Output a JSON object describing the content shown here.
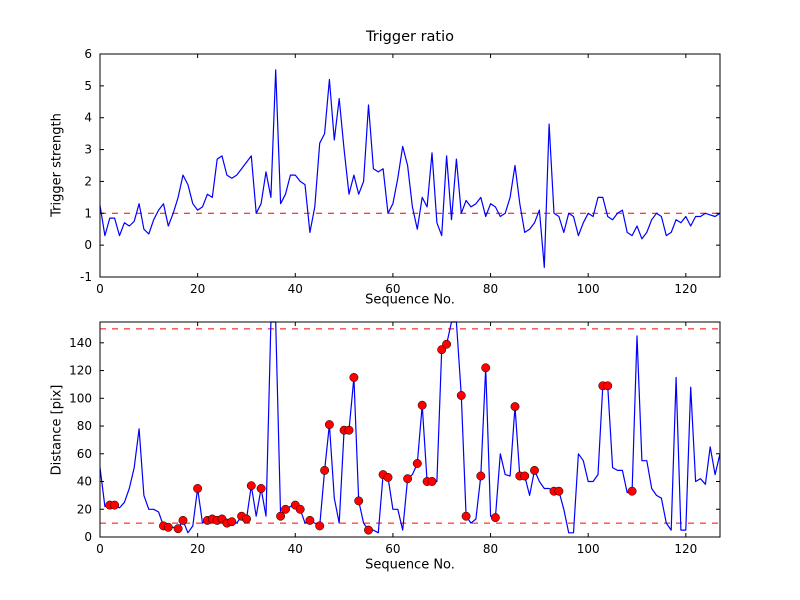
{
  "figure": {
    "background": "#ffffff",
    "line_color": "#0000ff",
    "threshold_color": "#ff0000",
    "marker_color": "#ff0000"
  },
  "chart_data": [
    {
      "type": "line",
      "title": "Trigger ratio",
      "xlabel": "Sequence No.",
      "ylabel": "Trigger strength",
      "xlim": [
        0,
        127
      ],
      "ylim": [
        -1,
        6
      ],
      "xticks": [
        0,
        20,
        40,
        60,
        80,
        100,
        120
      ],
      "yticks": [
        -1,
        0,
        1,
        2,
        3,
        4,
        5,
        6
      ],
      "grid": false,
      "line_color": "#0000ff",
      "threshold_lines": [
        {
          "y": 1,
          "color": "#ff0000",
          "style": "dashed"
        }
      ],
      "values": [
        1.25,
        0.3,
        0.85,
        0.85,
        0.3,
        0.7,
        0.6,
        0.75,
        1.3,
        0.5,
        0.35,
        0.8,
        1.1,
        1.3,
        0.6,
        1.0,
        1.5,
        2.2,
        1.9,
        1.3,
        1.1,
        1.2,
        1.6,
        1.5,
        2.7,
        2.8,
        2.2,
        2.1,
        2.2,
        2.4,
        2.6,
        2.8,
        1.0,
        1.3,
        2.3,
        1.5,
        5.5,
        1.3,
        1.6,
        2.2,
        2.2,
        2.0,
        1.9,
        0.4,
        1.2,
        3.2,
        3.5,
        5.2,
        3.3,
        4.6,
        3.0,
        1.6,
        2.2,
        1.6,
        2.0,
        4.4,
        2.4,
        2.3,
        2.4,
        1.0,
        1.3,
        2.1,
        3.1,
        2.5,
        1.2,
        0.5,
        1.5,
        1.2,
        2.9,
        0.7,
        0.3,
        2.8,
        0.8,
        2.7,
        1.0,
        1.4,
        1.2,
        1.3,
        1.5,
        0.9,
        1.3,
        1.2,
        0.9,
        1.0,
        1.5,
        2.5,
        1.3,
        0.4,
        0.5,
        0.7,
        1.1,
        -0.7,
        3.8,
        1.0,
        0.9,
        0.4,
        1.0,
        0.9,
        0.3,
        0.7,
        1.0,
        0.9,
        1.5,
        1.5,
        0.9,
        0.8,
        1.0,
        1.1,
        0.4,
        0.3,
        0.6,
        0.2,
        0.4,
        0.8,
        1.0,
        0.9,
        0.3,
        0.4,
        0.8,
        0.7,
        0.9,
        0.6,
        0.9,
        0.9,
        1.0,
        0.95,
        0.9,
        1.0
      ]
    },
    {
      "type": "line",
      "title": "",
      "xlabel": "Sequence No.",
      "ylabel": "Distance [pix]",
      "xlim": [
        0,
        127
      ],
      "ylim": [
        0,
        155
      ],
      "xticks": [
        0,
        20,
        40,
        60,
        80,
        100,
        120
      ],
      "yticks": [
        0,
        20,
        40,
        60,
        80,
        100,
        120,
        140
      ],
      "grid": false,
      "line_color": "#0000ff",
      "threshold_lines": [
        {
          "y": 150,
          "color": "#ff0000",
          "style": "dashed"
        },
        {
          "y": 10,
          "color": "#ff0000",
          "style": "dashed"
        }
      ],
      "marker_color": "#ff0000",
      "marker_indices": [
        2,
        3,
        13,
        14,
        16,
        17,
        20,
        22,
        23,
        24,
        25,
        26,
        27,
        29,
        30,
        31,
        33,
        37,
        38,
        40,
        41,
        43,
        45,
        46,
        47,
        50,
        51,
        52,
        53,
        55,
        58,
        59,
        63,
        65,
        66,
        67,
        68,
        70,
        71,
        74,
        75,
        78,
        79,
        81,
        85,
        86,
        87,
        89,
        93,
        94,
        103,
        104,
        109
      ],
      "values": [
        50,
        22,
        23,
        23,
        21,
        25,
        35,
        50,
        78,
        30,
        20,
        20,
        18,
        8,
        7,
        7,
        6,
        12,
        3,
        8,
        35,
        10,
        12,
        13,
        12,
        13,
        10,
        11,
        10,
        15,
        13,
        37,
        15,
        35,
        15,
        175,
        175,
        15,
        20,
        22,
        23,
        20,
        10,
        12,
        10,
        8,
        48,
        81,
        28,
        10,
        77,
        77,
        115,
        26,
        10,
        5,
        5,
        3,
        45,
        43,
        20,
        20,
        5,
        42,
        45,
        53,
        95,
        40,
        40,
        40,
        135,
        139,
        158,
        160,
        102,
        15,
        10,
        13,
        44,
        122,
        15,
        14,
        60,
        45,
        44,
        94,
        44,
        44,
        30,
        48,
        40,
        35,
        35,
        33,
        33,
        20,
        3,
        3,
        60,
        55,
        40,
        40,
        45,
        109,
        109,
        50,
        48,
        48,
        32,
        33,
        145,
        55,
        55,
        35,
        30,
        28,
        10,
        5,
        115,
        5,
        5,
        108,
        40,
        42,
        38,
        65,
        45,
        60
      ]
    }
  ]
}
